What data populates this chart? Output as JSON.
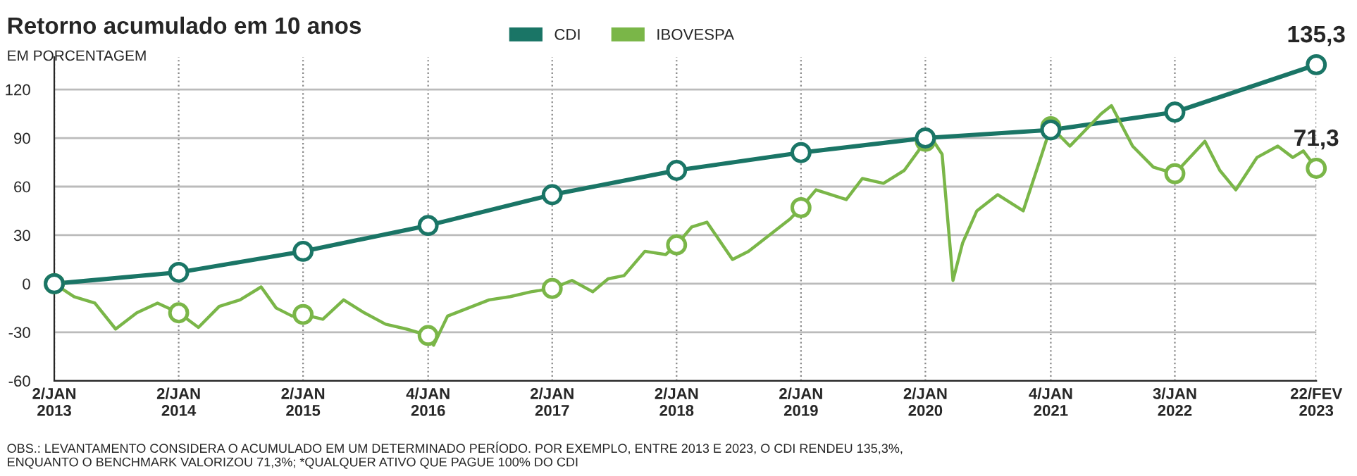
{
  "chart_data": {
    "type": "line",
    "title": "Retorno acumulado em 10 anos",
    "subtitle": "EM PORCENTAGEM",
    "series": [
      {
        "name": "CDI",
        "color": "#1a7566",
        "marker": "circle",
        "x": [
          "2013-01-02",
          "2014-01-02",
          "2015-01-02",
          "2016-01-04",
          "2017-01-02",
          "2018-01-02",
          "2019-01-02",
          "2020-01-02",
          "2021-01-04",
          "2022-01-03",
          "2023-02-22"
        ],
        "values": [
          0,
          7,
          20,
          36,
          55,
          70,
          81,
          90,
          95,
          106,
          135.3
        ]
      },
      {
        "name": "IBOVESPA",
        "color": "#7ab648",
        "marker": "none",
        "x": [
          "2013-01-02",
          "2013-03-01",
          "2013-05-01",
          "2013-07-01",
          "2013-09-01",
          "2013-11-01",
          "2014-01-02",
          "2014-03-01",
          "2014-05-01",
          "2014-07-01",
          "2014-09-01",
          "2014-10-15",
          "2014-12-01",
          "2015-01-02",
          "2015-03-01",
          "2015-05-01",
          "2015-07-01",
          "2015-09-01",
          "2015-11-01",
          "2016-01-04",
          "2016-01-20",
          "2016-03-01",
          "2016-05-01",
          "2016-07-01",
          "2016-09-01",
          "2016-11-01",
          "2017-01-02",
          "2017-03-01",
          "2017-05-01",
          "2017-06-15",
          "2017-08-01",
          "2017-10-01",
          "2017-12-01",
          "2018-01-02",
          "2018-02-15",
          "2018-04-01",
          "2018-06-15",
          "2018-08-01",
          "2018-10-01",
          "2018-12-01",
          "2019-01-02",
          "2019-02-15",
          "2019-05-15",
          "2019-07-01",
          "2019-09-01",
          "2019-11-01",
          "2020-01-02",
          "2020-01-20",
          "2020-02-20",
          "2020-03-23",
          "2020-04-20",
          "2020-06-01",
          "2020-08-01",
          "2020-10-15",
          "2020-12-01",
          "2021-01-04",
          "2021-03-01",
          "2021-06-01",
          "2021-07-01",
          "2021-09-01",
          "2021-11-01",
          "2022-01-03",
          "2022-04-01",
          "2022-05-15",
          "2022-07-01",
          "2022-09-01",
          "2022-11-01",
          "2022-12-15",
          "2023-01-15",
          "2023-02-22"
        ],
        "values": [
          0,
          -8,
          -12,
          -28,
          -18,
          -12,
          -18,
          -27,
          -14,
          -10,
          -2,
          -15,
          -20,
          -19,
          -22,
          -10,
          -18,
          -25,
          -28,
          -32,
          -38,
          -20,
          -15,
          -10,
          -8,
          -5,
          -3,
          2,
          -5,
          3,
          5,
          20,
          18,
          24,
          35,
          38,
          15,
          20,
          30,
          40,
          47,
          58,
          52,
          65,
          62,
          70,
          88,
          90,
          80,
          2,
          25,
          45,
          55,
          45,
          75,
          97,
          85,
          105,
          110,
          85,
          72,
          68,
          88,
          70,
          58,
          78,
          85,
          78,
          82,
          71.3
        ]
      },
      {
        "type": "scatter",
        "color": "#7ab648",
        "marker": "circle",
        "x": [
          "2013-01-02",
          "2014-01-02",
          "2015-01-02",
          "2016-01-04",
          "2017-01-02",
          "2018-01-02",
          "2019-01-02",
          "2020-01-02",
          "2021-01-04",
          "2022-01-03",
          "2023-02-22"
        ],
        "values": [
          0,
          -18,
          -19,
          -32,
          -3,
          24,
          47,
          88,
          97,
          68,
          71.3
        ]
      }
    ],
    "xlim": [
      "2013-01-02",
      "2023-02-22"
    ],
    "ylim": [
      -60,
      140
    ],
    "xticks": [
      {
        "value": "2013-01-02",
        "label": "2/JAN\n2013"
      },
      {
        "value": "2014-01-02",
        "label": "2/JAN\n2014"
      },
      {
        "value": "2015-01-02",
        "label": "2/JAN\n2015"
      },
      {
        "value": "2016-01-04",
        "label": "4/JAN\n2016"
      },
      {
        "value": "2017-01-02",
        "label": "2/JAN\n2017"
      },
      {
        "value": "2018-01-02",
        "label": "2/JAN\n2018"
      },
      {
        "value": "2019-01-02",
        "label": "2/JAN\n2019"
      },
      {
        "value": "2020-01-02",
        "label": "2/JAN\n2020"
      },
      {
        "value": "2021-01-04",
        "label": "4/JAN\n2021"
      },
      {
        "value": "2022-01-03",
        "label": "3/JAN\n2022"
      },
      {
        "value": "2023-02-22",
        "label": "22/FEV\n2023"
      }
    ],
    "yticks": [
      -60,
      -30,
      0,
      30,
      60,
      90,
      120
    ],
    "grid": true,
    "legend": "top",
    "annotations": [
      {
        "text": "135,3",
        "x": "2023-02-22",
        "y": 135.3
      },
      {
        "text": "71,3",
        "x": "2023-02-22",
        "y": 71.3
      },
      "OBS.: LEVANTAMENTO CONSIDERA O ACUMULADO EM UM DETERMINADO PERÍODO. POR EXEMPLO, ENTRE 2013 E 2023, O CDI RENDEU 135,3%,\nENQUANTO O BENCHMARK VALORIZOU 71,3%; *QUALQUER ATIVO QUE PAGUE 100% DO CDI"
    ]
  }
}
